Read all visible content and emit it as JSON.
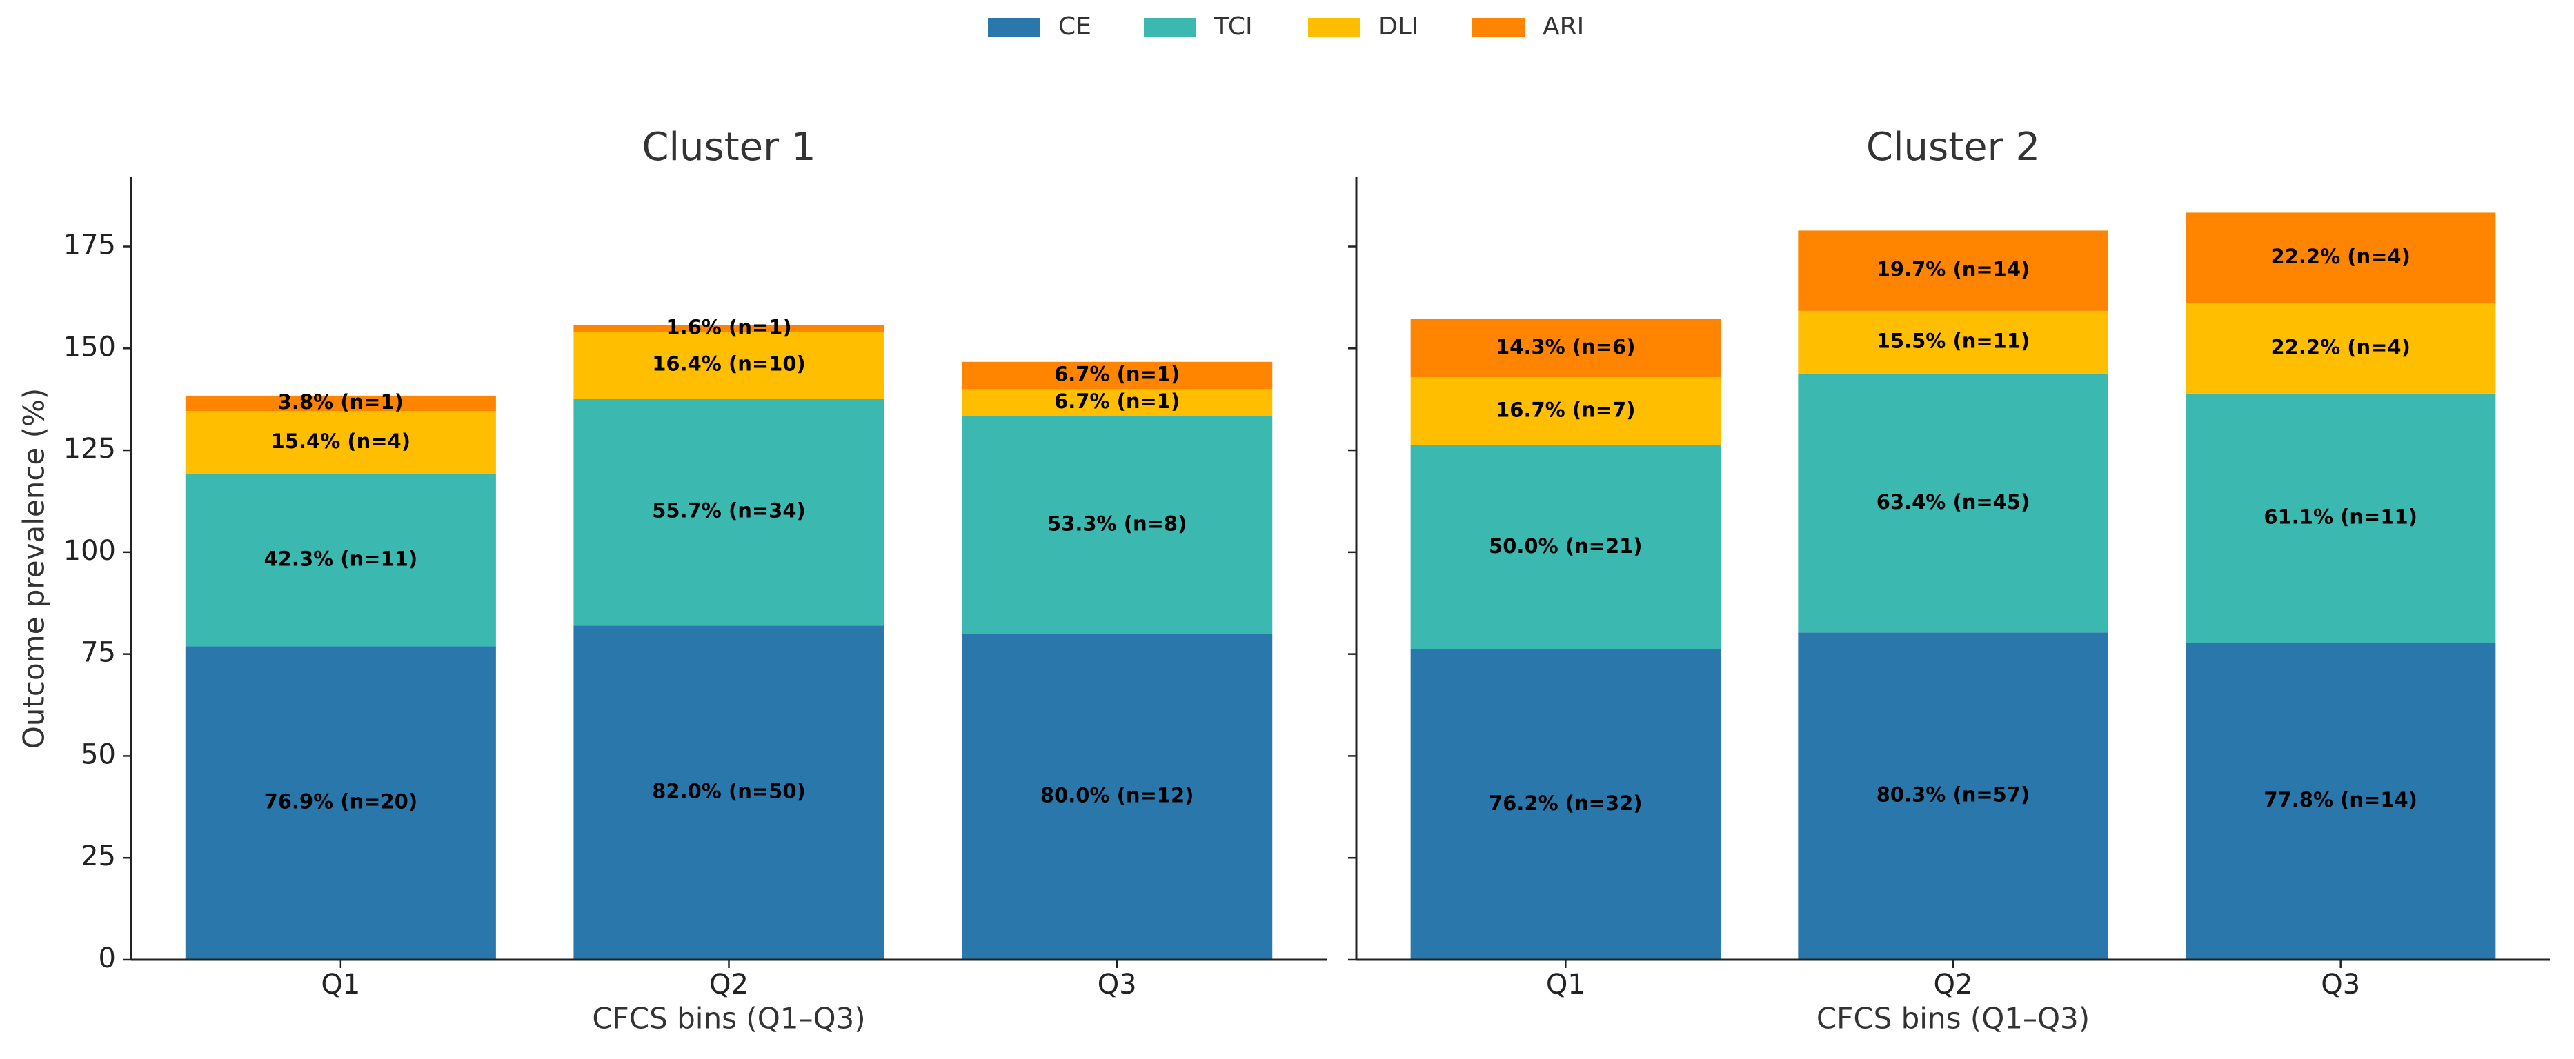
{
  "chart_data": [
    {
      "type": "stacked-bar",
      "title": "Cluster 1",
      "xlabel": "CFCS bins (Q1–Q3)",
      "ylabel": "Outcome prevalence (%)",
      "categories": [
        "Q1",
        "Q2",
        "Q3"
      ],
      "series": [
        {
          "name": "CE",
          "color": "#2a78ab",
          "values": [
            76.9,
            82.0,
            80.0
          ],
          "value_labels": [
            "76.9% (n=20)",
            "82.0% (n=50)",
            "80.0% (n=12)"
          ]
        },
        {
          "name": "TCI",
          "color": "#3bb8b0",
          "values": [
            42.3,
            55.7,
            53.3
          ],
          "value_labels": [
            "42.3% (n=11)",
            "55.7% (n=34)",
            "53.3% (n=8)"
          ]
        },
        {
          "name": "DLI",
          "color": "#ffbf00",
          "values": [
            15.4,
            16.4,
            6.7
          ],
          "value_labels": [
            "15.4% (n=4)",
            "16.4% (n=10)",
            "6.7% (n=1)"
          ]
        },
        {
          "name": "ARI",
          "color": "#ff8500",
          "values": [
            3.8,
            1.6,
            6.7
          ],
          "value_labels": [
            "3.8% (n=1)",
            "1.6% (n=1)",
            "6.7% (n=1)"
          ]
        }
      ],
      "ylim": [
        0,
        192
      ],
      "yticks": [
        0,
        25,
        50,
        75,
        100,
        125,
        150,
        175
      ]
    },
    {
      "type": "stacked-bar",
      "title": "Cluster 2",
      "xlabel": "CFCS bins (Q1–Q3)",
      "categories": [
        "Q1",
        "Q2",
        "Q3"
      ],
      "series": [
        {
          "name": "CE",
          "color": "#2a78ab",
          "values": [
            76.2,
            80.3,
            77.8
          ],
          "value_labels": [
            "76.2% (n=32)",
            "80.3% (n=57)",
            "77.8% (n=14)"
          ]
        },
        {
          "name": "TCI",
          "color": "#3bb8b0",
          "values": [
            50.0,
            63.4,
            61.1
          ],
          "value_labels": [
            "50.0% (n=21)",
            "63.4% (n=45)",
            "61.1% (n=11)"
          ]
        },
        {
          "name": "DLI",
          "color": "#ffbf00",
          "values": [
            16.7,
            15.5,
            22.2
          ],
          "value_labels": [
            "16.7% (n=7)",
            "15.5% (n=11)",
            "22.2% (n=4)"
          ]
        },
        {
          "name": "ARI",
          "color": "#ff8500",
          "values": [
            14.3,
            19.7,
            22.2
          ],
          "value_labels": [
            "14.3% (n=6)",
            "19.7% (n=14)",
            "22.2% (n=4)"
          ]
        }
      ],
      "ylim": [
        0,
        192
      ],
      "yticks": [
        0,
        25,
        50,
        75,
        100,
        125,
        150,
        175
      ]
    }
  ]
}
